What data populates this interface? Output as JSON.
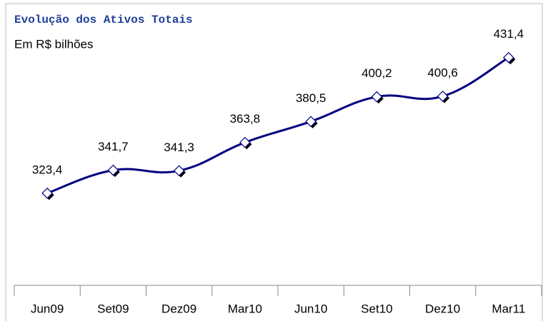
{
  "chart_data": {
    "type": "line",
    "title": "Evolução dos Ativos Totais",
    "subtitle": "Em R$ bilhões",
    "categories": [
      "Jun09",
      "Set09",
      "Dez09",
      "Mar10",
      "Jun10",
      "Set10",
      "Dez10",
      "Mar11"
    ],
    "values": [
      323.4,
      341.7,
      341.3,
      363.8,
      380.5,
      400.2,
      400.6,
      431.4
    ],
    "value_labels": [
      "323,4",
      "341,7",
      "341,3",
      "363,8",
      "380,5",
      "400,2",
      "400,6",
      "431,4"
    ],
    "color": "#000080",
    "ylim": [
      250,
      475
    ]
  }
}
